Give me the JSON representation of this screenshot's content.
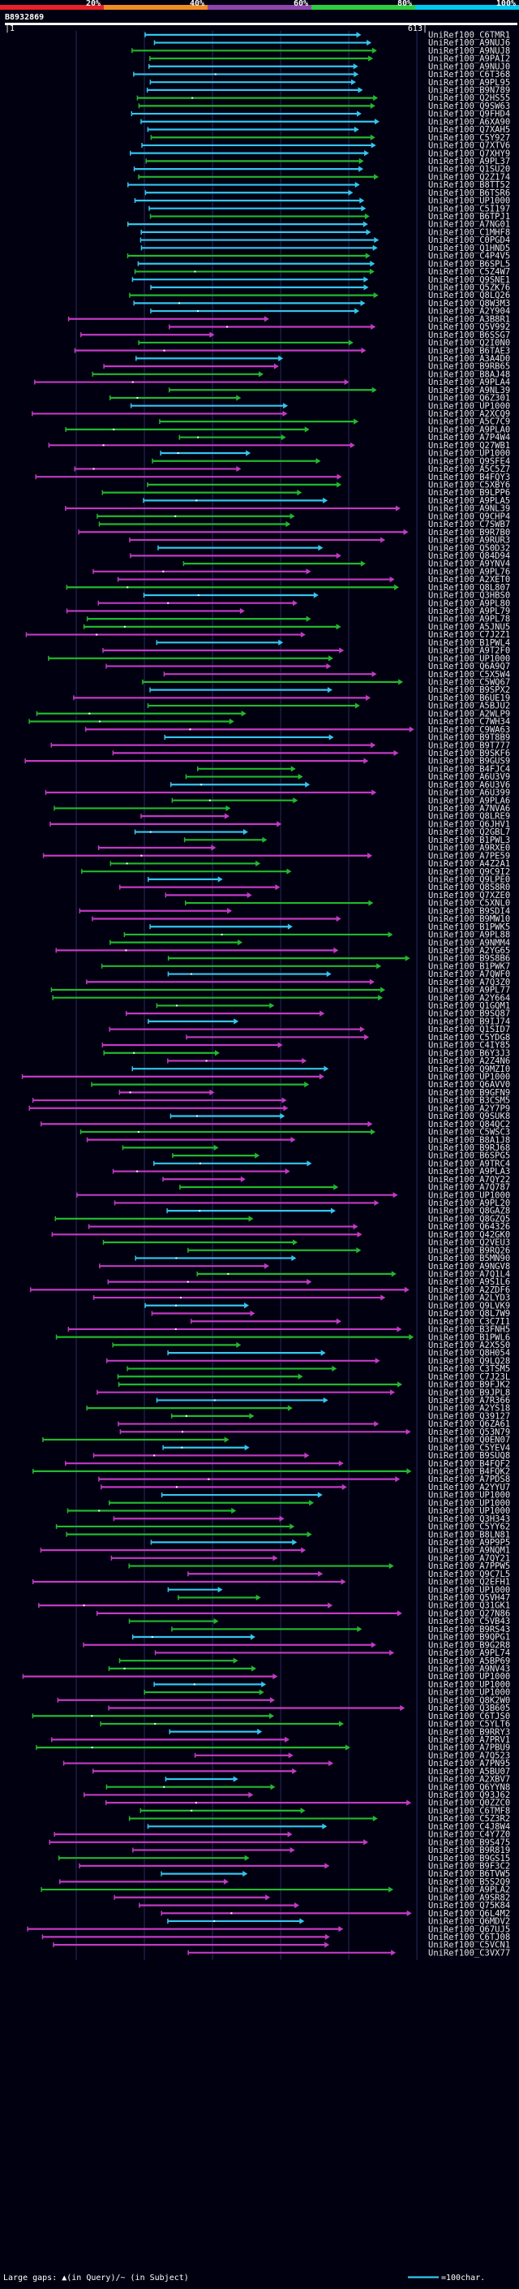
{
  "chart_data": {
    "type": "alignment-overview",
    "title": "B8932869",
    "query_length": 613,
    "axis": {
      "start_label": "1",
      "end_label": "613"
    },
    "identity_scale": {
      "ticks": [
        "20%",
        "40%",
        "60%",
        "80%",
        "100%"
      ],
      "colors": [
        "#e8202a",
        "#ef8c22",
        "#8e44ad",
        "#2ecc40",
        "#00c8f0"
      ]
    },
    "color_classes": {
      "cyan": "#34c5ee",
      "green": "#22b72d",
      "magenta": "#c23ac2"
    },
    "subjects": [
      "UniRef100_C6TMR1",
      "UniRef100_A9NUJ6",
      "UniRef100_A9NUJ8",
      "UniRef100_A9PAI2",
      "UniRef100_A9NUJ0",
      "UniRef100_C6T368",
      "UniRef100_A9PL95",
      "UniRef100_B9N789",
      "UniRef100_Q2HS55",
      "UniRef100_Q9SW63",
      "UniRef100_Q9FHD4",
      "UniRef100_A6XA90",
      "UniRef100_Q7XAH5",
      "UniRef100_C5Y927",
      "UniRef100_Q7XTV6",
      "UniRef100_Q7XHY9",
      "UniRef100_A9PL37",
      "UniRef100_Q1SU20",
      "UniRef100_Q2Z174",
      "UniRef100_B8TT52",
      "UniRef100_B6TSR6",
      "UniRef100_UP1000",
      "UniRef100_C5I197",
      "UniRef100_B6TPJ1",
      "UniRef100_A7NG01",
      "UniRef100_C1MHF8",
      "UniRef100_C0PGD4",
      "UniRef100_Q1HND5",
      "UniRef100_C4P4V5",
      "UniRef100_B6SPL5",
      "UniRef100_C5Z4W7",
      "UniRef100_Q9SNE1",
      "UniRef100_Q5ZK76",
      "UniRef100_Q8LQ26",
      "UniRef100_Q8W3M3",
      "UniRef100_A2Y904",
      "UniRef100_A3B8R1",
      "UniRef100_Q5V992",
      "UniRef100_B6SSG7",
      "UniRef100_Q2I0N0",
      "UniRef100_B6TAE3",
      "UniRef100_A3A4D0",
      "UniRef100_B9RB65",
      "UniRef100_B8AJ48",
      "UniRef100_A9PLA4",
      "UniRef100_A9NL39",
      "UniRef100_Q6Z301",
      "UniRef100_UP1000",
      "UniRef100_A2XCQ9",
      "UniRef100_A5C7C9",
      "UniRef100_A9PLA0",
      "UniRef100_A7P4W4",
      "UniRef100_Q27WB1",
      "UniRef100_UP1000",
      "UniRef100_Q9SFE4",
      "UniRef100_A5C5Z7",
      "UniRef100_B4FQY3",
      "UniRef100_C5XBY6",
      "UniRef100_B9LPP6",
      "UniRef100_A9PLA5",
      "UniRef100_A9NL39",
      "UniRef100_Q9CHP4",
      "UniRef100_C7SWB7",
      "UniRef100_B9R7B0",
      "UniRef100_A9RUR3",
      "UniRef100_Q50D32",
      "UniRef100_Q84D94",
      "UniRef100_A9YNV4",
      "UniRef100_A9PL76",
      "UniRef100_A2XET0",
      "UniRef100_Q8L807",
      "UniRef100_Q3HBS0",
      "UniRef100_A9PL80",
      "UniRef100_A9PL79",
      "UniRef100_A9PL78",
      "UniRef100_A5JNU5",
      "UniRef100_C7J2Z1",
      "UniRef100_B1PWL4",
      "UniRef100_A9T2F0",
      "UniRef100_UP1000",
      "UniRef100_Q6A9Q7",
      "UniRef100_C5X5W4",
      "UniRef100_C5WQ67",
      "UniRef100_B9SPX2",
      "UniRef100_B6UE19",
      "UniRef100_A5BJU2",
      "UniRef100_A2WLP9",
      "UniRef100_C7WH34",
      "UniRef100_C9WA63",
      "UniRef100_B9T8B9",
      "UniRef100_B9T777",
      "UniRef100_B9SKF6",
      "UniRef100_B9GUS9",
      "UniRef100_B4FJC4",
      "UniRef100_A6U3V9",
      "UniRef100_A6U3V6",
      "UniRef100_A6U399",
      "UniRef100_A9PLA6",
      "UniRef100_A7NVA6",
      "UniRef100_Q8LRE9",
      "UniRef100_Q6JHV1",
      "UniRef100_Q2GBL7",
      "UniRef100_B1PWL3",
      "UniRef100_A9RXE0",
      "UniRef100_A7PE59",
      "UniRef100_A4Z2A1",
      "UniRef100_Q9C9I2",
      "UniRef100_Q9LPE0",
      "UniRef100_Q8S8R0",
      "UniRef100_Q7XZE0",
      "UniRef100_C5XNL0",
      "UniRef100_B9SDI4",
      "UniRef100_B9MW10",
      "UniRef100_B1PWK5",
      "UniRef100_A9PL88",
      "UniRef100_A9NMM4",
      "UniRef100_A2YG65",
      "UniRef100_B9S8B6",
      "UniRef100_B1PWK7",
      "UniRef100_A7QWF0",
      "UniRef100_A7Q3Z0",
      "UniRef100_A9PL77",
      "UniRef100_A2Y664",
      "UniRef100_Q1GQM1",
      "UniRef100_B9SQ87",
      "UniRef100_B9IJ74",
      "UniRef100_Q1SID7",
      "UniRef100_C5YDG8",
      "UniRef100_C4IY85",
      "UniRef100_B6Y3J3",
      "UniRef100_A2Z4N6",
      "UniRef100_Q9MZI0",
      "UniRef100_UP1000",
      "UniRef100_Q6AVV0",
      "UniRef100_B9GFN9",
      "UniRef100_B3CSM5",
      "UniRef100_A2Y7P9",
      "UniRef100_Q9SUK8",
      "UniRef100_Q84QC2",
      "UniRef100_C5WSC3",
      "UniRef100_B8A1J8",
      "UniRef100_B9RJ68",
      "UniRef100_B6SPG5",
      "UniRef100_A9TRC4",
      "UniRef100_A9PLA3",
      "UniRef100_A7QY22",
      "UniRef100_A7Q787",
      "UniRef100_UP1000",
      "UniRef100_A9PL20",
      "UniRef100_Q8GAZ8",
      "UniRef100_Q8GZQ5",
      "UniRef100_Q64326",
      "UniRef100_Q42GK0",
      "UniRef100_Q2VEU3",
      "UniRef100_B9RQ26",
      "UniRef100_B5MN90",
      "UniRef100_A9NGV8",
      "UniRef100_A7Q1L4",
      "UniRef100_A9S1L6",
      "UniRef100_A2ZDF6",
      "UniRef100_A2LYD3",
      "UniRef100_Q9LVK9",
      "UniRef100_Q8L7W9",
      "UniRef100_C3C7I1",
      "UniRef100_B3FNH5",
      "UniRef100_B1PWL6",
      "UniRef100_A2X5S0",
      "UniRef100_Q8H054",
      "UniRef100_Q9LQ28",
      "UniRef100_C3TSM5",
      "UniRef100_C7J23L",
      "UniRef100_B9FJK2",
      "UniRef100_B9JPL8",
      "UniRef100_A7R366",
      "UniRef100_A2YS18",
      "UniRef100_Q39127",
      "UniRef100_Q6ZA61",
      "UniRef100_Q53N79",
      "UniRef100_Q0EN07",
      "UniRef100_C5YEV4",
      "UniRef100_B9SUQ8",
      "UniRef100_B4FQF2",
      "UniRef100_B4FQK2",
      "UniRef100_A7PDS8",
      "UniRef100_A2YYU7",
      "UniRef100_UP1000",
      "UniRef100_UP1000",
      "UniRef100_UP1000",
      "UniRef100_Q3H343",
      "UniRef100_C5YY62",
      "UniRef100_B8LN81",
      "UniRef100_A9P9P5",
      "UniRef100_A9NQM1",
      "UniRef100_A7QY21",
      "UniRef100_A7PPW5",
      "UniRef100_Q9C7L5",
      "UniRef100_Q2EFH1",
      "UniRef100_UP1000",
      "UniRef100_Q5VH47",
      "UniRef100_Q31GK1",
      "UniRef100_Q27N86",
      "UniRef100_C5VB43",
      "UniRef100_B9RS43",
      "UniRef100_B9QPG1",
      "UniRef100_B9G2R8",
      "UniRef100_A9PL74",
      "UniRef100_A5BP69",
      "UniRef100_A9NV43",
      "UniRef100_UP1000",
      "UniRef100_UP1000",
      "UniRef100_UP1000",
      "UniRef100_Q8K2W0",
      "UniRef100_Q3B605",
      "UniRef100_C6TJS0",
      "UniRef100_C5YLT6",
      "UniRef100_B9RRY3",
      "UniRef100_A7PRV1",
      "UniRef100_A7PBU9",
      "UniRef100_A7Q523",
      "UniRef100_A7PN95",
      "UniRef100_A5BU07",
      "UniRef100_A2XBV7",
      "UniRef100_Q6YYN8",
      "UniRef100_Q93J62",
      "UniRef100_Q0ZZC0",
      "UniRef100_C6TMF8",
      "UniRef100_C5Z3R2",
      "UniRef100_C4J8W4",
      "UniRef100_C4Y7Z0",
      "UniRef100_B9S475",
      "UniRef100_B9R819",
      "UniRef100_B9GS15",
      "UniRef100_B9F3C2",
      "UniRef100_B6TVW5",
      "UniRef100_B5S2Q9",
      "UniRef100_A9PLA2",
      "UniRef100_A9SR82",
      "UniRef100_Q75K84",
      "UniRef100_Q6L4M2",
      "UniRef100_Q6MDV2",
      "UniRef100_Q67UJ5",
      "UniRef100_C6TJ08",
      "UniRef100_C5VCN1",
      "UniRef100_C3VX77"
    ],
    "footer": {
      "legend_text": "Large gaps: ▲(in Query)/~ (in Subject)",
      "scale_text": "=100char."
    }
  }
}
